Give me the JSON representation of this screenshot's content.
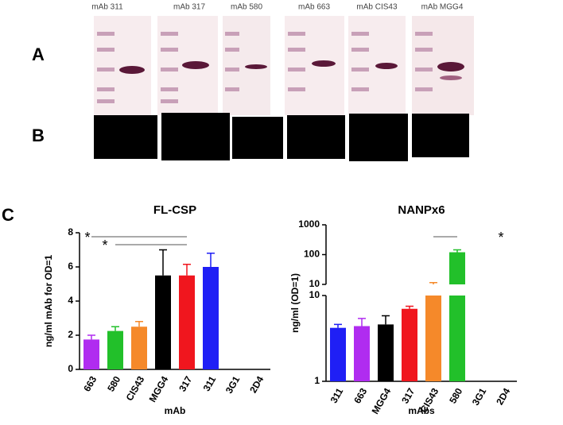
{
  "panels": [
    "A",
    "B",
    "C"
  ],
  "blot_labels": [
    "mAb 311",
    "mAb 317",
    "mAb 580",
    "mAb 663",
    "mAb CIS43",
    "mAb MGG4"
  ],
  "chart_data": [
    {
      "type": "bar",
      "title": "FL-CSP",
      "y_label": "ng/ml mAb for OD=1",
      "x_label": "mAb",
      "categories": [
        "663",
        "580",
        "CIS43",
        "MGG4",
        "317",
        "311",
        "3G1",
        "2D4"
      ],
      "values": [
        1.75,
        2.25,
        2.5,
        5.5,
        5.5,
        6.0,
        null,
        null
      ],
      "errors": [
        0.25,
        0.25,
        0.3,
        1.5,
        0.65,
        0.8,
        null,
        null
      ],
      "colors": [
        "#b02cf0",
        "#22c02a",
        "#f5892a",
        "#000000",
        "#f0161e",
        "#1f1ff5",
        null,
        null
      ],
      "ylim": [
        0,
        8
      ],
      "yticks": [
        0,
        2,
        4,
        6,
        8
      ],
      "log": false,
      "annotations": [
        "*",
        "*"
      ]
    },
    {
      "type": "bar",
      "title": "NANPx6",
      "y_label": "ng/ml (OD=1)",
      "x_label": "mAbs",
      "categories": [
        "311",
        "663",
        "MGG4",
        "317",
        "CIS43",
        "580",
        "3G1",
        "2D4"
      ],
      "values": [
        4.2,
        4.4,
        4.6,
        7,
        10,
        120,
        null,
        null
      ],
      "errors": [
        0.4,
        1.0,
        1.2,
        0.5,
        1.5,
        25,
        null,
        null
      ],
      "colors": [
        "#1f1ff5",
        "#b02cf0",
        "#000000",
        "#f0161e",
        "#f5892a",
        "#22c02a",
        null,
        null
      ],
      "ylim": [
        1,
        1000
      ],
      "yticks": [
        1,
        10,
        100,
        1000
      ],
      "log": true,
      "annotations": [
        "*"
      ]
    }
  ]
}
